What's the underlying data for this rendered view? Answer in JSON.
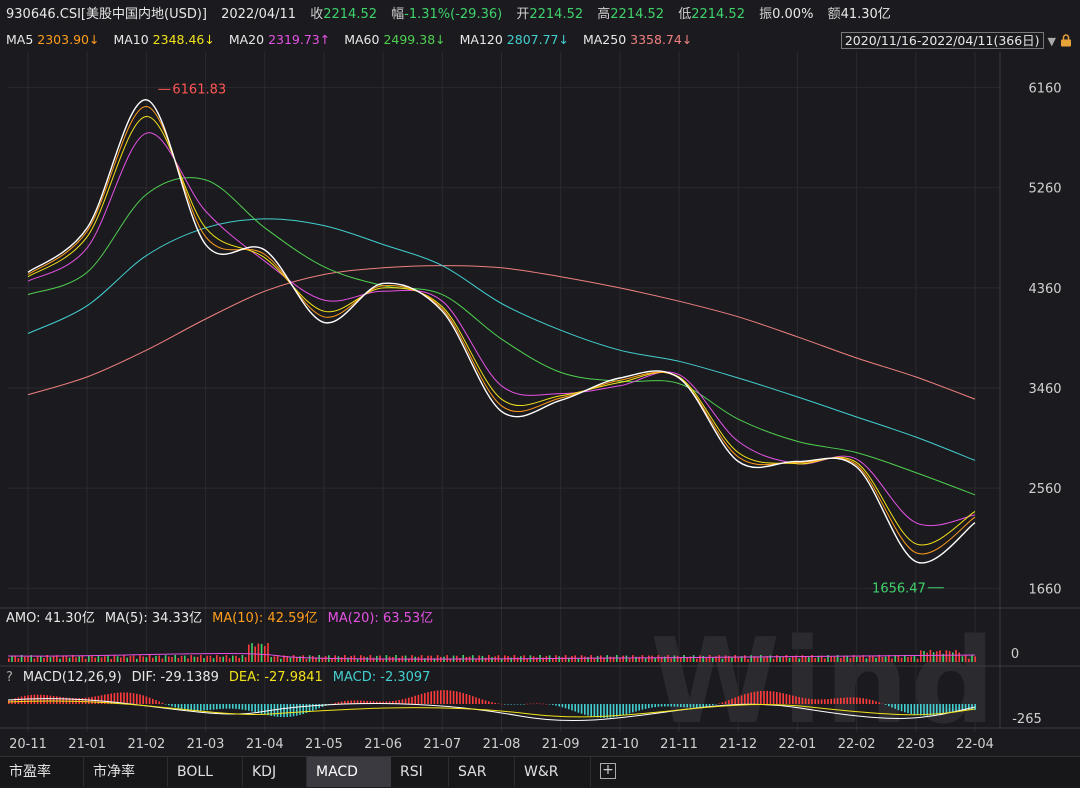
{
  "header": {
    "code": "930646.CSI[美股中国内地(USD)]",
    "date": "2022/04/11",
    "close_label": "收",
    "close": "2214.52",
    "change_label": "幅",
    "change": "-1.31%(-29.36)",
    "open_label": "开",
    "open": "2214.52",
    "high_label": "高",
    "high": "2214.52",
    "low_label": "低",
    "low": "2214.52",
    "amplitude_label": "振",
    "amplitude": "0.00%",
    "amount_label": "额",
    "amount": "41.30亿"
  },
  "ma_legend": [
    {
      "label": "MA5",
      "value": "2303.90↓",
      "color": "#ff9d1c"
    },
    {
      "label": "MA10",
      "value": "2348.46↓",
      "color": "#f2e21a"
    },
    {
      "label": "MA20",
      "value": "2319.73↑",
      "color": "#e552e5"
    },
    {
      "label": "MA60",
      "value": "2499.38↓",
      "color": "#4fcf4f"
    },
    {
      "label": "MA120",
      "value": "2807.77↓",
      "color": "#43cfd0"
    },
    {
      "label": "MA250",
      "value": "3358.74↓",
      "color": "#f08080"
    }
  ],
  "date_range": {
    "text": "2020/11/16-2022/04/11(366日)",
    "arrow": "▼",
    "lock_icon": "lock-icon"
  },
  "amo": {
    "label": "AMO: 41.30亿",
    "ma5": "MA(5): 34.33亿",
    "ma10": "MA(10): 42.59亿",
    "ma20": "MA(20): 63.53亿",
    "axis_label": "0"
  },
  "macd": {
    "q": "?",
    "label": "MACD(12,26,9)",
    "dif": "DIF: -29.1389",
    "dea": "DEA: -27.9841",
    "macd": "MACD: -2.3097",
    "axis_label": "-265"
  },
  "watermark": "Wind",
  "tabs": [
    "市盈率",
    "市净率",
    "BOLL",
    "KDJ",
    "MACD",
    "RSI",
    "SAR",
    "W&R"
  ],
  "active_tab": "MACD",
  "colors": {
    "background": "#1b1b1f",
    "price": "#ffffff",
    "up": "#ff3b3b",
    "down": "#3fd26b"
  },
  "chart_data": {
    "type": "line",
    "y_ticks": [
      "6160",
      "5260",
      "4360",
      "3460",
      "2560",
      "1660"
    ],
    "ylim": [
      1600,
      6300
    ],
    "x_ticks": [
      "20-11",
      "21-01",
      "21-02",
      "21-03",
      "21-04",
      "21-05",
      "21-06",
      "21-07",
      "21-08",
      "21-09",
      "21-10",
      "21-11",
      "21-12",
      "22-01",
      "22-02",
      "22-03",
      "22-04"
    ],
    "annotations": [
      {
        "text": "6161.83",
        "x": "21-02",
        "value": 6161.83
      },
      {
        "text": "1656.47",
        "x": "22-03",
        "value": 1656.47
      }
    ],
    "series": [
      {
        "name": "930646.CSI",
        "color": "#ffffff",
        "x": [
          "20-11",
          "21-01",
          "21-02",
          "21-03",
          "21-04",
          "21-05",
          "21-06",
          "21-07",
          "21-08",
          "21-09",
          "21-10",
          "21-11",
          "21-12",
          "22-01",
          "22-02",
          "22-03",
          "22-04"
        ],
        "values": [
          4500,
          4900,
          6050,
          4750,
          4700,
          4050,
          4400,
          4150,
          3250,
          3350,
          3550,
          3550,
          2800,
          2800,
          2750,
          1900,
          2250
        ]
      },
      {
        "name": "MA5",
        "color": "#ff9d1c",
        "values": [
          4480,
          4870,
          5990,
          4820,
          4660,
          4100,
          4380,
          4170,
          3300,
          3370,
          3530,
          3550,
          2840,
          2790,
          2770,
          1980,
          2300
        ]
      },
      {
        "name": "MA10",
        "color": "#f2e21a",
        "values": [
          4460,
          4820,
          5900,
          4900,
          4630,
          4150,
          4360,
          4190,
          3360,
          3390,
          3510,
          3560,
          2880,
          2780,
          2790,
          2060,
          2350
        ]
      },
      {
        "name": "MA20",
        "color": "#e552e5",
        "values": [
          4420,
          4720,
          5750,
          5050,
          4600,
          4250,
          4330,
          4240,
          3480,
          3410,
          3480,
          3580,
          2980,
          2780,
          2820,
          2250,
          2320
        ]
      },
      {
        "name": "MA60",
        "color": "#4fcf4f",
        "values": [
          4300,
          4500,
          5200,
          5330,
          4900,
          4550,
          4380,
          4300,
          3900,
          3600,
          3520,
          3500,
          3180,
          2980,
          2880,
          2700,
          2500
        ]
      },
      {
        "name": "MA120",
        "color": "#43cfd0",
        "values": [
          3950,
          4200,
          4650,
          4900,
          4980,
          4920,
          4750,
          4560,
          4220,
          3980,
          3800,
          3700,
          3550,
          3380,
          3200,
          3020,
          2810
        ]
      },
      {
        "name": "MA250",
        "color": "#f08080",
        "values": [
          3400,
          3560,
          3800,
          4080,
          4330,
          4480,
          4540,
          4560,
          4540,
          4460,
          4360,
          4240,
          4100,
          3920,
          3730,
          3560,
          3360
        ]
      }
    ]
  }
}
